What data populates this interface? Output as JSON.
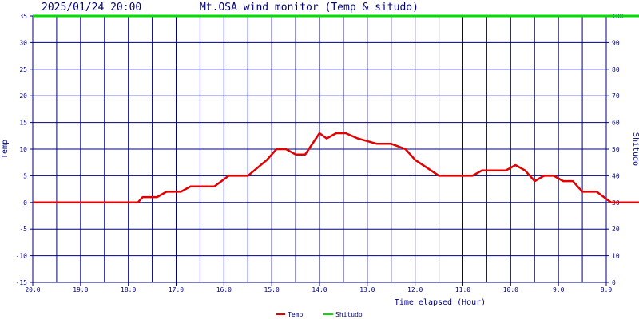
{
  "header": {
    "timestamp": "2025/01/24 20:00",
    "title": "Mt.OSA wind monitor (Temp & situdo)"
  },
  "chart_data": {
    "type": "line",
    "title": "Mt.OSA wind monitor (Temp & situdo)",
    "xlabel": "Time elapsed (Hour)",
    "ylabel_left": "Temp",
    "ylabel_right": "Shitudo",
    "x_tick_labels": [
      "20:0",
      "19:0",
      "18:0",
      "17:0",
      "16:0",
      "15:0",
      "14:0",
      "13:0",
      "12:0",
      "11:0",
      "10:0",
      "9:0",
      "8:0"
    ],
    "y_left": {
      "range": [
        -15,
        35
      ],
      "ticks": [
        35,
        30,
        25,
        20,
        15,
        10,
        5,
        0,
        -5,
        -10,
        -15
      ]
    },
    "y_right": {
      "range": [
        0,
        100
      ],
      "ticks": [
        100,
        90,
        80,
        70,
        60,
        50,
        40,
        30,
        20,
        10,
        0
      ]
    },
    "grid": true,
    "legend_position": "bottom-center",
    "colors": {
      "temp": "#e00000",
      "shitudo": "#00e000",
      "axis": "#000080",
      "grid": "#000080"
    },
    "series": [
      {
        "name": "Temp",
        "axis": "left",
        "points": [
          [
            0,
            0
          ],
          [
            0.5,
            0
          ],
          [
            1,
            0
          ],
          [
            1.5,
            0
          ],
          [
            2,
            0
          ],
          [
            2.2,
            0
          ],
          [
            2.3,
            1
          ],
          [
            2.6,
            1
          ],
          [
            2.8,
            2
          ],
          [
            3.1,
            2
          ],
          [
            3.3,
            3
          ],
          [
            3.8,
            3
          ],
          [
            4.1,
            5
          ],
          [
            4.5,
            5
          ],
          [
            4.9,
            8
          ],
          [
            5.1,
            10
          ],
          [
            5.3,
            10
          ],
          [
            5.5,
            9
          ],
          [
            5.7,
            9
          ],
          [
            6.0,
            13
          ],
          [
            6.15,
            12
          ],
          [
            6.35,
            13
          ],
          [
            6.55,
            13
          ],
          [
            6.8,
            12
          ],
          [
            7.2,
            11
          ],
          [
            7.5,
            11
          ],
          [
            7.8,
            10
          ],
          [
            8.0,
            8
          ],
          [
            8.5,
            5
          ],
          [
            9.0,
            5
          ],
          [
            9.2,
            5
          ],
          [
            9.4,
            6
          ],
          [
            9.9,
            6
          ],
          [
            10.1,
            7
          ],
          [
            10.3,
            6
          ],
          [
            10.5,
            4
          ],
          [
            10.7,
            5
          ],
          [
            10.9,
            5
          ],
          [
            11.1,
            4
          ],
          [
            11.3,
            4
          ],
          [
            11.5,
            2
          ],
          [
            11.8,
            2
          ],
          [
            12.1,
            0
          ],
          [
            12.5,
            0
          ],
          [
            12.75,
            0
          ]
        ]
      },
      {
        "name": "Shitudo",
        "axis": "right",
        "points": [
          [
            0,
            100
          ],
          [
            12.75,
            100
          ]
        ]
      }
    ]
  },
  "legend": [
    {
      "label": "Temp",
      "color": "#e00000"
    },
    {
      "label": "Shitudo",
      "color": "#00e000"
    }
  ]
}
